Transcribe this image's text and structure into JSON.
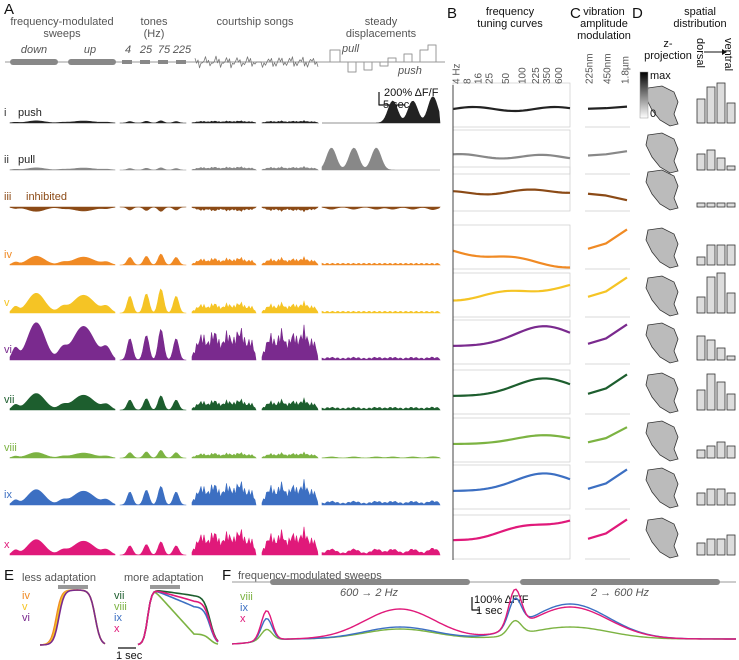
{
  "panel_letters": [
    "A",
    "B",
    "C",
    "D",
    "E",
    "F"
  ],
  "stimuli": {
    "sweeps": {
      "title": [
        "frequency-modulated",
        "sweeps"
      ],
      "down": "down",
      "up": "up"
    },
    "tones": {
      "title": [
        "tones",
        "(Hz)"
      ],
      "freqs": [
        "4",
        "25",
        "75",
        "225"
      ]
    },
    "songs": "courtship songs",
    "steady": {
      "title": [
        "steady",
        "displacements"
      ],
      "pull": "pull",
      "push": "push"
    }
  },
  "scale_bar": {
    "amplitude": "200% ΔF/F",
    "time": "5 sec"
  },
  "rows": [
    {
      "numeral": "i",
      "name": "push",
      "color": "#222222"
    },
    {
      "numeral": "ii",
      "name": "pull",
      "color": "#888888"
    },
    {
      "numeral": "iii",
      "name": "inhibited",
      "color": "#8b4a16"
    },
    {
      "numeral": "iv",
      "color": "#f08a24"
    },
    {
      "numeral": "v",
      "color": "#f5c425"
    },
    {
      "numeral": "vi",
      "color": "#7a2a8e"
    },
    {
      "numeral": "vii",
      "color": "#1d5e2e"
    },
    {
      "numeral": "viii",
      "color": "#7cb342"
    },
    {
      "numeral": "ix",
      "color": "#3c6fc2"
    },
    {
      "numeral": "x",
      "color": "#e0197a"
    }
  ],
  "tuning": {
    "title": [
      "frequency",
      "tuning curves"
    ],
    "ticks": [
      "4 Hz",
      "8",
      "16",
      "25",
      "50",
      "100",
      "225",
      "350",
      "600"
    ]
  },
  "amplitude": {
    "title": [
      "vibration",
      "amplitude",
      "modulation"
    ],
    "ticks": [
      "225nm",
      "450nm",
      "1.8µm"
    ]
  },
  "spatial": {
    "title": [
      "spatial",
      "distribution"
    ],
    "projection": [
      "z-",
      "projection"
    ],
    "scale": [
      "max",
      "0"
    ],
    "axis": [
      "dorsal",
      "ventral"
    ]
  },
  "adaptation": {
    "less": "less adaptation",
    "more": "more adaptation",
    "less_labels": [
      "iv",
      "v",
      "vi"
    ],
    "more_labels": [
      "vii",
      "viii",
      "ix",
      "x"
    ],
    "time": "1 sec"
  },
  "sweep_panel": {
    "title": "frequency-modulated sweeps",
    "down": "600 → 2 Hz",
    "up": "2 → 600 Hz",
    "amplitude": "100% ΔF/F",
    "time": "1 sec",
    "labels": [
      "viii",
      "ix",
      "x"
    ]
  }
}
